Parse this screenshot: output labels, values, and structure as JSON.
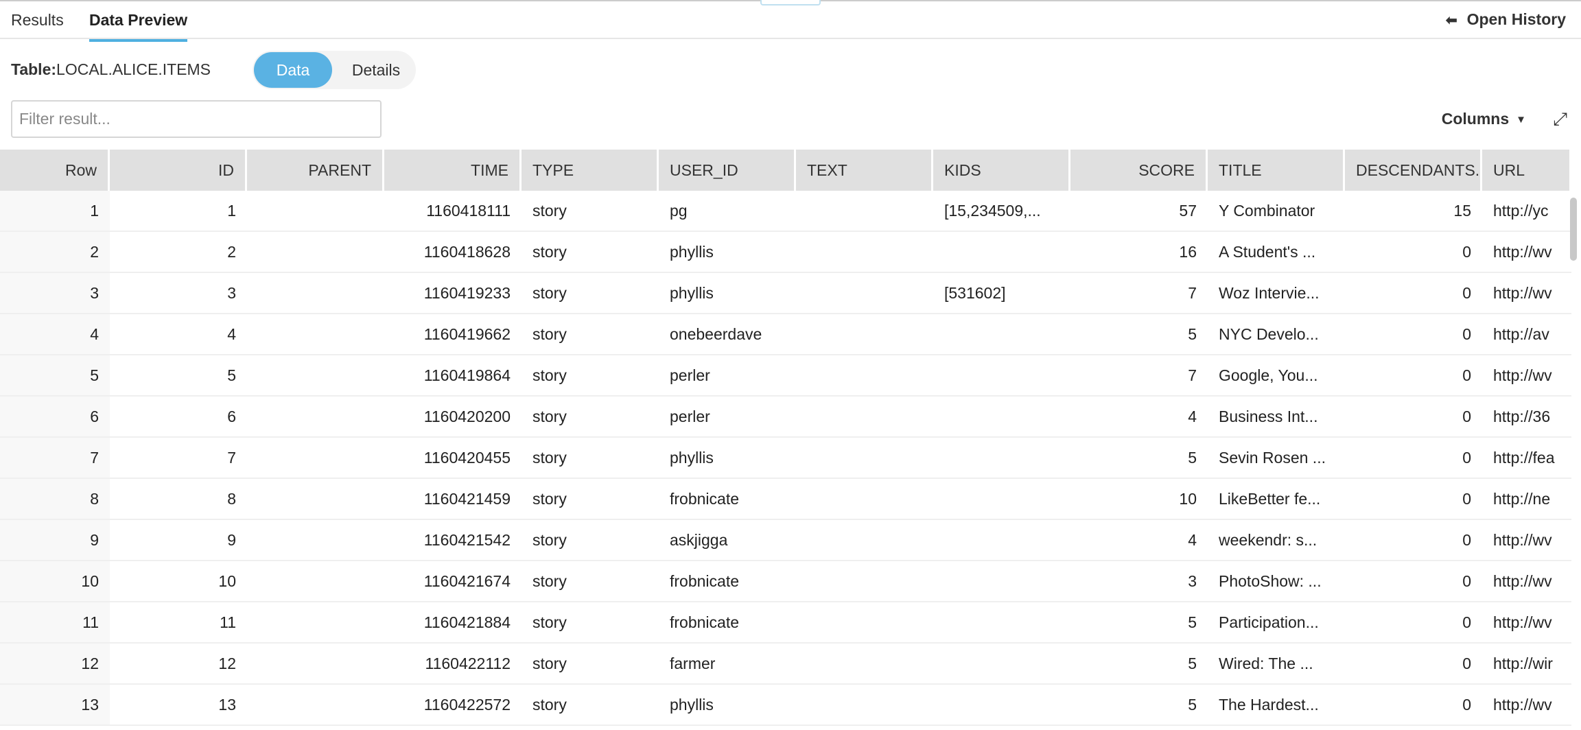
{
  "tabs": [
    {
      "label": "Results",
      "active": false
    },
    {
      "label": "Data Preview",
      "active": true
    }
  ],
  "history": {
    "icon": "arrow-left-icon",
    "label": "Open History"
  },
  "table_label": {
    "prefix": "Table:",
    "name": "LOCAL.ALICE.ITEMS"
  },
  "view_toggle": {
    "data": "Data",
    "details": "Details",
    "selected": "Data"
  },
  "filter": {
    "placeholder": "Filter result...",
    "value": ""
  },
  "toolbar": {
    "columns": "Columns",
    "expand_icon": "expand-icon"
  },
  "accent": "#5ab2e3",
  "columns": [
    "Row",
    "ID",
    "PARENT",
    "TIME",
    "TYPE",
    "USER_ID",
    "TEXT",
    "KIDS",
    "SCORE",
    "TITLE",
    "DESCENDANTS.",
    "URL"
  ],
  "rows": [
    [
      "1",
      "1",
      "",
      "1160418111",
      "story",
      "pg",
      "",
      "[15,234509,...",
      "57",
      "Y Combinator",
      "15",
      "http://yc"
    ],
    [
      "2",
      "2",
      "",
      "1160418628",
      "story",
      "phyllis",
      "",
      "",
      "16",
      "A Student's ...",
      "0",
      "http://wv"
    ],
    [
      "3",
      "3",
      "",
      "1160419233",
      "story",
      "phyllis",
      "",
      "[531602]",
      "7",
      "Woz Intervie...",
      "0",
      "http://wv"
    ],
    [
      "4",
      "4",
      "",
      "1160419662",
      "story",
      "onebeerdave",
      "",
      "",
      "5",
      "NYC Develo...",
      "0",
      "http://av"
    ],
    [
      "5",
      "5",
      "",
      "1160419864",
      "story",
      "perler",
      "",
      "",
      "7",
      "Google, You...",
      "0",
      "http://wv"
    ],
    [
      "6",
      "6",
      "",
      "1160420200",
      "story",
      "perler",
      "",
      "",
      "4",
      "Business Int...",
      "0",
      "http://36"
    ],
    [
      "7",
      "7",
      "",
      "1160420455",
      "story",
      "phyllis",
      "",
      "",
      "5",
      "Sevin Rosen ...",
      "0",
      "http://fea"
    ],
    [
      "8",
      "8",
      "",
      "1160421459",
      "story",
      "frobnicate",
      "",
      "",
      "10",
      "LikeBetter fe...",
      "0",
      "http://ne"
    ],
    [
      "9",
      "9",
      "",
      "1160421542",
      "story",
      "askjigga",
      "",
      "",
      "4",
      "weekendr: s...",
      "0",
      "http://wv"
    ],
    [
      "10",
      "10",
      "",
      "1160421674",
      "story",
      "frobnicate",
      "",
      "",
      "3",
      "PhotoShow: ...",
      "0",
      "http://wv"
    ],
    [
      "11",
      "11",
      "",
      "1160421884",
      "story",
      "frobnicate",
      "",
      "",
      "5",
      "Participation...",
      "0",
      "http://wv"
    ],
    [
      "12",
      "12",
      "",
      "1160422112",
      "story",
      "farmer",
      "",
      "",
      "5",
      "Wired: The ...",
      "0",
      "http://wir"
    ],
    [
      "13",
      "13",
      "",
      "1160422572",
      "story",
      "phyllis",
      "",
      "",
      "5",
      "The Hardest...",
      "0",
      "http://wv"
    ]
  ]
}
